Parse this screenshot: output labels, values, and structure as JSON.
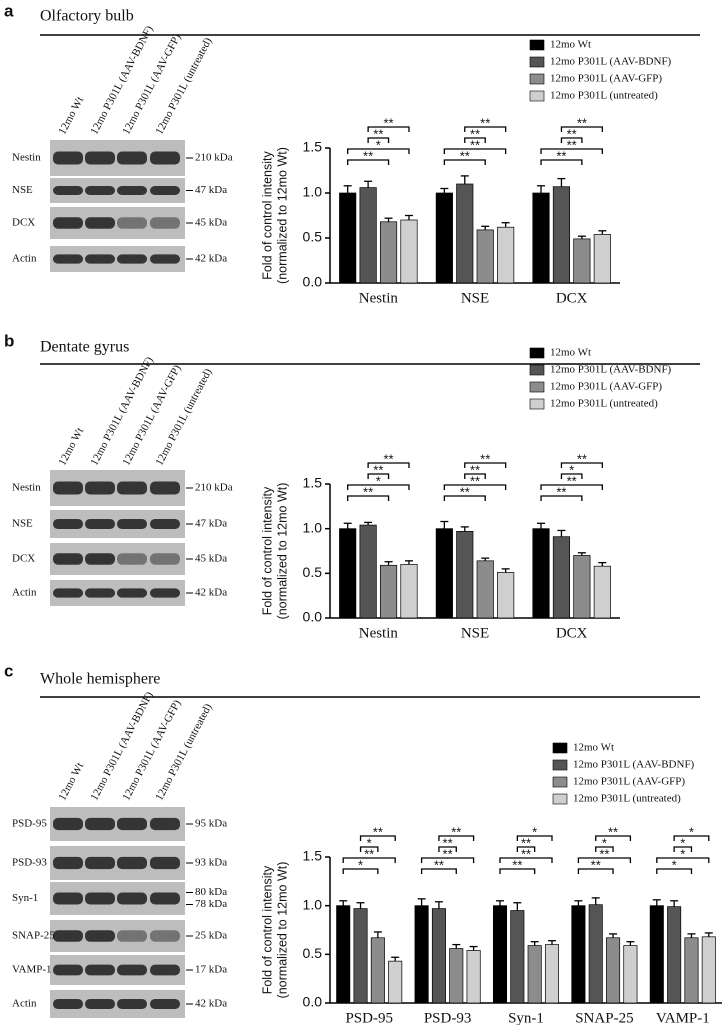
{
  "figure_panels": [
    {
      "letter": "a",
      "title": "Olfactory bulb",
      "lanes": [
        "12mo Wt",
        "12mo P301L (AAV-BDNF)",
        "12mo P301L (AAV-GFP)",
        "12mo P301L (untreated)"
      ],
      "bands": [
        {
          "name": "Nestin",
          "kda": [
            "210 kDa"
          ]
        },
        {
          "name": "NSE",
          "kda": [
            "47 kDa"
          ]
        },
        {
          "name": "DCX",
          "kda": [
            "45 kDa"
          ]
        },
        {
          "name": "Actin",
          "kda": [
            "42 kDa"
          ]
        }
      ]
    },
    {
      "letter": "b",
      "title": "Dentate gyrus",
      "lanes": [
        "12mo Wt",
        "12mo P301L (AAV-BDNF)",
        "12mo P301L (AAV-GFP)",
        "12mo P301L (untreated)"
      ],
      "bands": [
        {
          "name": "Nestin",
          "kda": [
            "210 kDa"
          ]
        },
        {
          "name": "NSE",
          "kda": [
            "47 kDa"
          ]
        },
        {
          "name": "DCX",
          "kda": [
            "45 kDa"
          ]
        },
        {
          "name": "Actin",
          "kda": [
            "42 kDa"
          ]
        }
      ]
    },
    {
      "letter": "c",
      "title": "Whole hemisphere",
      "lanes": [
        "12mo Wt",
        "12mo P301L (AAV-BDNF)",
        "12mo P301L (AAV-GFP)",
        "12mo P301L (untreated)"
      ],
      "bands": [
        {
          "name": "PSD-95",
          "kda": [
            "95 kDa"
          ]
        },
        {
          "name": "PSD-93",
          "kda": [
            "93 kDa"
          ]
        },
        {
          "name": "Syn-1",
          "kda": [
            "80 kDa",
            "78 kDa"
          ]
        },
        {
          "name": "SNAP-25",
          "kda": [
            "25 kDa"
          ]
        },
        {
          "name": "VAMP-1",
          "kda": [
            "17 kDa"
          ]
        },
        {
          "name": "Actin",
          "kda": [
            "42 kDa"
          ]
        }
      ]
    }
  ],
  "chart_data": [
    {
      "type": "bar",
      "categories": [
        "Nestin",
        "NSE",
        "DCX"
      ],
      "ylabel": [
        "Fold of control intensity",
        "(normalized to 12mo Wt)"
      ],
      "ylim": [
        0,
        1.5
      ],
      "yticks": [
        {
          "value": 0,
          "label": "0.0"
        },
        {
          "value": 0.5,
          "label": "0.5"
        },
        {
          "value": 1,
          "label": "1.0"
        },
        {
          "value": 1.5,
          "label": "1.5"
        }
      ],
      "series": [
        {
          "name": "12mo Wt",
          "color": "#000000",
          "values": [
            1.0,
            1.0,
            1.0
          ],
          "errors": [
            0.08,
            0.05,
            0.08
          ]
        },
        {
          "name": "12mo P301L (AAV-BDNF)",
          "color": "#555555",
          "values": [
            1.06,
            1.1,
            1.07
          ],
          "errors": [
            0.07,
            0.09,
            0.09
          ]
        },
        {
          "name": "12mo P301L (AAV-GFP)",
          "color": "#8c8c8c",
          "values": [
            0.68,
            0.59,
            0.49
          ],
          "errors": [
            0.04,
            0.04,
            0.03
          ]
        },
        {
          "name": "12mo P301L (untreated)",
          "color": "#cfcfcf",
          "values": [
            0.7,
            0.62,
            0.54
          ],
          "errors": [
            0.05,
            0.05,
            0.04
          ]
        }
      ],
      "significance": [
        [
          "**",
          "**",
          "*",
          "**"
        ],
        [
          "**",
          "**",
          "**",
          "**"
        ],
        [
          "**",
          "**",
          "**",
          "**"
        ]
      ]
    },
    {
      "type": "bar",
      "categories": [
        "Nestin",
        "NSE",
        "DCX"
      ],
      "ylabel": [
        "Fold of control intensity",
        "(normalized to 12mo Wt)"
      ],
      "ylim": [
        0,
        1.5
      ],
      "yticks": [
        {
          "value": 0,
          "label": "0.0"
        },
        {
          "value": 0.5,
          "label": "0.5"
        },
        {
          "value": 1,
          "label": "1.0"
        },
        {
          "value": 1.5,
          "label": "1.5"
        }
      ],
      "series": [
        {
          "name": "12mo Wt",
          "color": "#000000",
          "values": [
            1.0,
            1.0,
            1.0
          ],
          "errors": [
            0.06,
            0.08,
            0.06
          ]
        },
        {
          "name": "12mo P301L (AAV-BDNF)",
          "color": "#555555",
          "values": [
            1.04,
            0.97,
            0.91
          ],
          "errors": [
            0.03,
            0.05,
            0.07
          ]
        },
        {
          "name": "12mo P301L (AAV-GFP)",
          "color": "#8c8c8c",
          "values": [
            0.59,
            0.64,
            0.7
          ],
          "errors": [
            0.04,
            0.03,
            0.03
          ]
        },
        {
          "name": "12mo P301L (untreated)",
          "color": "#cfcfcf",
          "values": [
            0.6,
            0.51,
            0.58
          ],
          "errors": [
            0.04,
            0.04,
            0.04
          ]
        }
      ],
      "significance": [
        [
          "**",
          "**",
          "*",
          "**"
        ],
        [
          "**",
          "**",
          "**",
          "**"
        ],
        [
          "**",
          "*",
          "**",
          "**"
        ]
      ]
    },
    {
      "type": "bar",
      "categories": [
        "PSD-95",
        "PSD-93",
        "Syn-1",
        "SNAP-25",
        "VAMP-1"
      ],
      "ylabel": [
        "Fold of control intensity",
        "(normalized to 12mo Wt)"
      ],
      "ylim": [
        0,
        1.5
      ],
      "yticks": [
        {
          "value": 0,
          "label": "0.0"
        },
        {
          "value": 0.5,
          "label": "0.5"
        },
        {
          "value": 1,
          "label": "1.0"
        },
        {
          "value": 1.5,
          "label": "1.5"
        }
      ],
      "series": [
        {
          "name": "12mo Wt",
          "color": "#000000",
          "values": [
            1.0,
            1.0,
            1.0,
            1.0,
            1.0
          ],
          "errors": [
            0.05,
            0.07,
            0.05,
            0.05,
            0.06
          ]
        },
        {
          "name": "12mo P301L (AAV-BDNF)",
          "color": "#555555",
          "values": [
            0.97,
            0.97,
            0.95,
            1.01,
            0.99
          ],
          "errors": [
            0.06,
            0.07,
            0.08,
            0.07,
            0.06
          ]
        },
        {
          "name": "12mo P301L (AAV-GFP)",
          "color": "#8c8c8c",
          "values": [
            0.67,
            0.56,
            0.59,
            0.67,
            0.67
          ],
          "errors": [
            0.06,
            0.04,
            0.04,
            0.04,
            0.04
          ]
        },
        {
          "name": "12mo P301L (untreated)",
          "color": "#cfcfcf",
          "values": [
            0.43,
            0.54,
            0.6,
            0.59,
            0.68
          ],
          "errors": [
            0.04,
            0.04,
            0.04,
            0.04,
            0.04
          ]
        }
      ],
      "significance": [
        [
          "**",
          "*",
          "**",
          "*"
        ],
        [
          "**",
          "**",
          "**",
          "**"
        ],
        [
          "*",
          "**",
          "**",
          "**"
        ],
        [
          "**",
          "*",
          "**",
          "**"
        ],
        [
          "*",
          "*",
          "*",
          "*"
        ]
      ]
    }
  ]
}
